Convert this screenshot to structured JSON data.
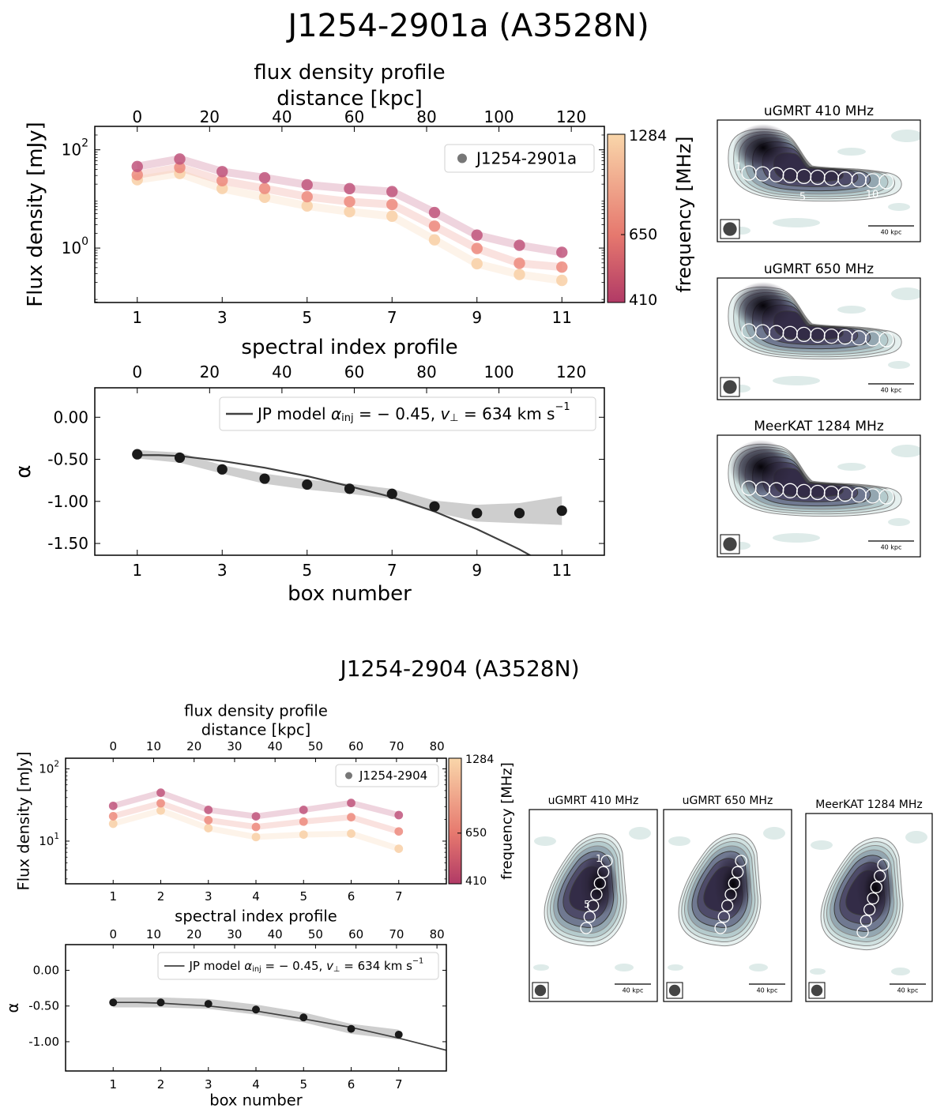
{
  "figure": {
    "top_title": "J1254-2901a (A3528N)",
    "bottom_title": "J1254-2904 (A3528N)"
  },
  "colors": {
    "f410": "#c0557d",
    "f650": "#ec8a7e",
    "f1284": "#f8cfa6",
    "model": "#404040",
    "points": "#1a1a1a",
    "band": "#bdbdbd"
  },
  "chart_data": [
    {
      "type": "line",
      "title": "flux density profile",
      "ylabel": "Flux density [mJy]",
      "xlabel": "",
      "yscale": "log",
      "xlim": [
        0,
        12
      ],
      "ylim": [
        0.078,
        300
      ],
      "xticks": [
        1,
        3,
        5,
        7,
        9,
        11
      ],
      "yticks": [
        {
          "value": 100,
          "base": "10",
          "exp": "2"
        },
        {
          "value": 1,
          "base": "10",
          "exp": "0"
        }
      ],
      "top_xaxis": {
        "label": "distance [kpc]",
        "ticks": [
          0,
          20,
          40,
          60,
          80,
          100,
          120
        ],
        "kpc_per_box": 11.74
      },
      "legend": {
        "label": "J1254-2901a",
        "placement": "upper right"
      },
      "colorbar": {
        "label": "frequency [MHz]",
        "ticks": [
          410,
          650,
          1284
        ],
        "scale": "log"
      },
      "x": [
        1,
        2,
        3,
        4,
        5,
        6,
        7,
        8,
        9,
        10,
        11
      ],
      "series": [
        {
          "freq": 410,
          "values": [
            45.7,
            65,
            36,
            27,
            19.4,
            16.2,
            14.1,
            5.3,
            1.83,
            1.14,
            0.82
          ]
        },
        {
          "freq": 650,
          "values": [
            31,
            43.6,
            23.5,
            16.3,
            11.1,
            8.8,
            7.7,
            2.8,
            0.98,
            0.49,
            0.41
          ]
        },
        {
          "freq": 1284,
          "values": [
            24.6,
            33,
            16.3,
            10.8,
            7.2,
            5.5,
            4.45,
            1.47,
            0.48,
            0.29,
            0.22
          ]
        }
      ]
    },
    {
      "type": "scatter",
      "title": "spectral index profile",
      "ylabel": "α",
      "xlabel": "box number",
      "xlim": [
        0,
        12
      ],
      "ylim": [
        -1.64,
        0.35
      ],
      "xticks": [
        1,
        3,
        5,
        7,
        9,
        11
      ],
      "yticks": [
        {
          "value": 0,
          "label": "0.00"
        },
        {
          "value": -0.5,
          "label": "-0.50"
        },
        {
          "value": -1,
          "label": "-1.00"
        },
        {
          "value": -1.5,
          "label": "-1.50"
        }
      ],
      "top_xaxis": {
        "label": "",
        "ticks": [
          0,
          20,
          40,
          60,
          80,
          100,
          120
        ],
        "kpc_per_box": 11.74
      },
      "x": [
        1,
        2,
        3,
        4,
        5,
        6,
        7,
        8,
        9,
        10,
        11
      ],
      "alpha": [
        -0.44,
        -0.48,
        -0.62,
        -0.73,
        -0.8,
        -0.85,
        -0.91,
        -1.06,
        -1.14,
        -1.14,
        -1.11
      ],
      "alpha_err": [
        0.05,
        0.06,
        0.05,
        0.06,
        0.06,
        0.06,
        0.06,
        0.07,
        0.1,
        0.12,
        0.17
      ],
      "model": {
        "x": [
          1,
          1.5,
          2,
          3,
          4,
          5,
          6,
          7,
          8,
          9,
          10,
          11
        ],
        "y": [
          -0.45,
          -0.45,
          -0.46,
          -0.52,
          -0.6,
          -0.7,
          -0.82,
          -0.95,
          -1.12,
          -1.33,
          -1.57,
          -1.85
        ]
      },
      "legend": {
        "prefix": "JP model ",
        "alpha": "α",
        "alpha_sub": "inj",
        "alpha_val": " = − 0.45, ",
        "v": "v",
        "v_sub": "⊥",
        "v_val": " = 634 km s",
        "unit_sup": "−1",
        "placement": "upper right"
      }
    },
    {
      "type": "line",
      "title": "flux density profile",
      "ylabel": "Flux density [mJy]",
      "xlabel": "",
      "yscale": "log",
      "xlim": [
        0,
        8
      ],
      "ylim": [
        2.57,
        140
      ],
      "xticks": [
        1,
        2,
        3,
        4,
        5,
        6,
        7
      ],
      "yticks": [
        {
          "value": 100,
          "base": "10",
          "exp": "2"
        },
        {
          "value": 10,
          "base": "10",
          "exp": "1"
        }
      ],
      "top_xaxis": {
        "label": "distance [kpc]",
        "ticks": [
          0,
          10,
          20,
          30,
          40,
          50,
          60,
          70,
          80
        ],
        "kpc_per_box": 11.76
      },
      "legend": {
        "label": "J1254-2904",
        "placement": "upper right"
      },
      "colorbar": {
        "label": "frequency [MHz]",
        "ticks": [
          410,
          650,
          1284
        ],
        "scale": "log"
      },
      "x": [
        1,
        2,
        3,
        4,
        5,
        6,
        7
      ],
      "series": [
        {
          "freq": 410,
          "values": [
            30.7,
            46.7,
            27,
            22,
            27,
            33.7,
            22.9
          ]
        },
        {
          "freq": 650,
          "values": [
            22.1,
            33.4,
            19.5,
            15.7,
            18.6,
            21.4,
            13.6
          ]
        },
        {
          "freq": 1284,
          "values": [
            17.4,
            26.5,
            15.1,
            11.4,
            12.3,
            12.7,
            7.85
          ]
        }
      ]
    },
    {
      "type": "scatter",
      "title": "spectral index profile",
      "ylabel": "α",
      "xlabel": "box number",
      "xlim": [
        0,
        8
      ],
      "ylim": [
        -1.41,
        0.36
      ],
      "xticks": [
        1,
        2,
        3,
        4,
        5,
        6,
        7
      ],
      "yticks": [
        {
          "value": 0,
          "label": "0.00"
        },
        {
          "value": -0.5,
          "label": "-0.50"
        },
        {
          "value": -1,
          "label": "-1.00"
        }
      ],
      "top_xaxis": {
        "label": "",
        "ticks": [
          0,
          10,
          20,
          30,
          40,
          50,
          60,
          70,
          80
        ],
        "kpc_per_box": 11.76
      },
      "x": [
        1,
        2,
        3,
        4,
        5,
        6,
        7
      ],
      "alpha": [
        -0.45,
        -0.45,
        -0.47,
        -0.55,
        -0.66,
        -0.82,
        -0.9
      ],
      "alpha_err": [
        0.07,
        0.07,
        0.07,
        0.07,
        0.07,
        0.07,
        0.07
      ],
      "model": {
        "x": [
          1,
          1.5,
          2,
          3,
          4,
          5,
          6,
          7,
          8
        ],
        "y": [
          -0.45,
          -0.45,
          -0.46,
          -0.5,
          -0.57,
          -0.68,
          -0.8,
          -0.95,
          -1.12
        ]
      },
      "legend": {
        "prefix": "JP model ",
        "alpha": "α",
        "alpha_sub": "inj",
        "alpha_val": " = − 0.45, ",
        "v": "v",
        "v_sub": "⊥",
        "v_val": " = 634 km s",
        "unit_sup": "−1",
        "placement": "upper right"
      }
    }
  ],
  "radio_images": {
    "top": [
      {
        "title": "uGMRT 410 MHz",
        "scalebar": "40 kpc",
        "labels": [
          "1",
          "5",
          "10"
        ]
      },
      {
        "title": "uGMRT 650 MHz",
        "scalebar": "40 kpc",
        "labels": []
      },
      {
        "title": "MeerKAT 1284 MHz",
        "scalebar": "40 kpc",
        "labels": []
      }
    ],
    "bottom": [
      {
        "title": "uGMRT 410 MHz",
        "scalebar": "40 kpc",
        "labels": [
          "1",
          "5"
        ]
      },
      {
        "title": "uGMRT 650 MHz",
        "scalebar": "40 kpc",
        "labels": []
      },
      {
        "title": "MeerKAT 1284 MHz",
        "scalebar": "40 kpc",
        "labels": []
      }
    ]
  }
}
